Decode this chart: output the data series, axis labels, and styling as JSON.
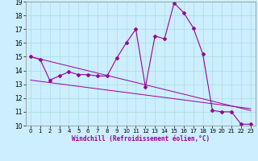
{
  "xlabel": "Windchill (Refroidissement éolien,°C)",
  "x": [
    0,
    1,
    2,
    3,
    4,
    5,
    6,
    7,
    8,
    9,
    10,
    11,
    12,
    13,
    14,
    15,
    16,
    17,
    18,
    19,
    20,
    21,
    22,
    23
  ],
  "y_main": [
    15.0,
    14.8,
    13.3,
    13.6,
    13.9,
    13.7,
    13.7,
    13.6,
    13.6,
    14.9,
    16.0,
    17.0,
    12.8,
    16.5,
    16.3,
    18.9,
    18.2,
    17.1,
    15.2,
    11.1,
    11.0,
    11.0,
    10.1,
    10.1
  ],
  "y_reg1": [
    15.0,
    14.83,
    14.66,
    14.49,
    14.32,
    14.15,
    13.98,
    13.81,
    13.64,
    13.47,
    13.3,
    13.13,
    12.96,
    12.79,
    12.62,
    12.45,
    12.28,
    12.11,
    11.94,
    11.77,
    11.6,
    11.43,
    11.26,
    11.09
  ],
  "y_reg2": [
    13.3,
    13.21,
    13.12,
    13.03,
    12.94,
    12.85,
    12.76,
    12.67,
    12.58,
    12.49,
    12.4,
    12.31,
    12.22,
    12.13,
    12.04,
    11.95,
    11.86,
    11.77,
    11.68,
    11.59,
    11.5,
    11.41,
    11.32,
    11.23
  ],
  "line_color": "#990099",
  "bg_color": "#cceeff",
  "grid_color": "#aadddd",
  "ylim": [
    10,
    19
  ],
  "xlim_min": -0.5,
  "xlim_max": 23.5,
  "yticks": [
    10,
    11,
    12,
    13,
    14,
    15,
    16,
    17,
    18,
    19
  ],
  "xticks": [
    0,
    1,
    2,
    3,
    4,
    5,
    6,
    7,
    8,
    9,
    10,
    11,
    12,
    13,
    14,
    15,
    16,
    17,
    18,
    19,
    20,
    21,
    22,
    23
  ]
}
